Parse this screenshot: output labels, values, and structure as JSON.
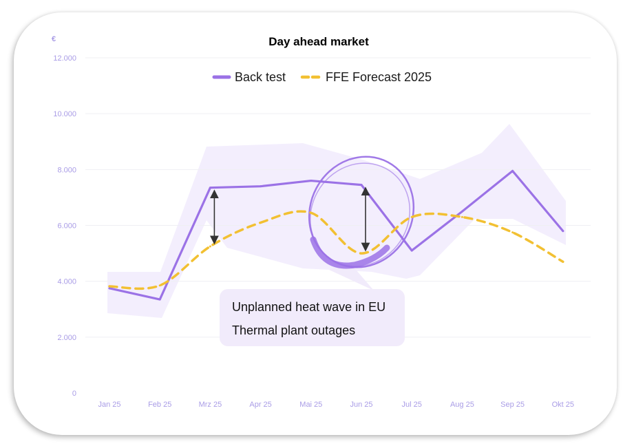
{
  "chart_data": {
    "type": "line",
    "title": "Day ahead market",
    "ylabel": "€",
    "xlabel": "",
    "categories": [
      "Jan 25",
      "Feb 25",
      "Mrz 25",
      "Apr 25",
      "Mai 25",
      "Jun 25",
      "Jul 25",
      "Aug 25",
      "Sep 25",
      "Okt 25"
    ],
    "ylim": [
      0,
      12000
    ],
    "yticks": [
      0,
      2000,
      4000,
      6000,
      8000,
      10000,
      12000
    ],
    "ytick_labels": [
      "0",
      "2.000",
      "4.000",
      "6.000",
      "8.000",
      "10.000",
      "12.000"
    ],
    "grid": true,
    "legend_position": "top",
    "series": [
      {
        "name": "Back test",
        "style": "solid",
        "color": "#9b72e6",
        "values": [
          3750,
          3350,
          7350,
          7400,
          7600,
          7450,
          5100,
          6500,
          7950,
          5800
        ]
      },
      {
        "name": "FFE Forecast 2025",
        "style": "dashed",
        "color": "#f2c032",
        "values": [
          3820,
          3850,
          5250,
          6100,
          6450,
          5000,
          6300,
          6300,
          5750,
          4700
        ]
      }
    ],
    "annotations": {
      "lines": [
        "Unplanned heat wave in EU",
        "Thermal plant outages"
      ]
    }
  },
  "colors": {
    "accent_purple": "#9b72e6",
    "forecast_yellow": "#f2c032",
    "band_fill": "#f1ebfd",
    "tick_text": "#a99ce6",
    "grid": "#efeff3",
    "annotation_box": "#f1ebfb"
  }
}
